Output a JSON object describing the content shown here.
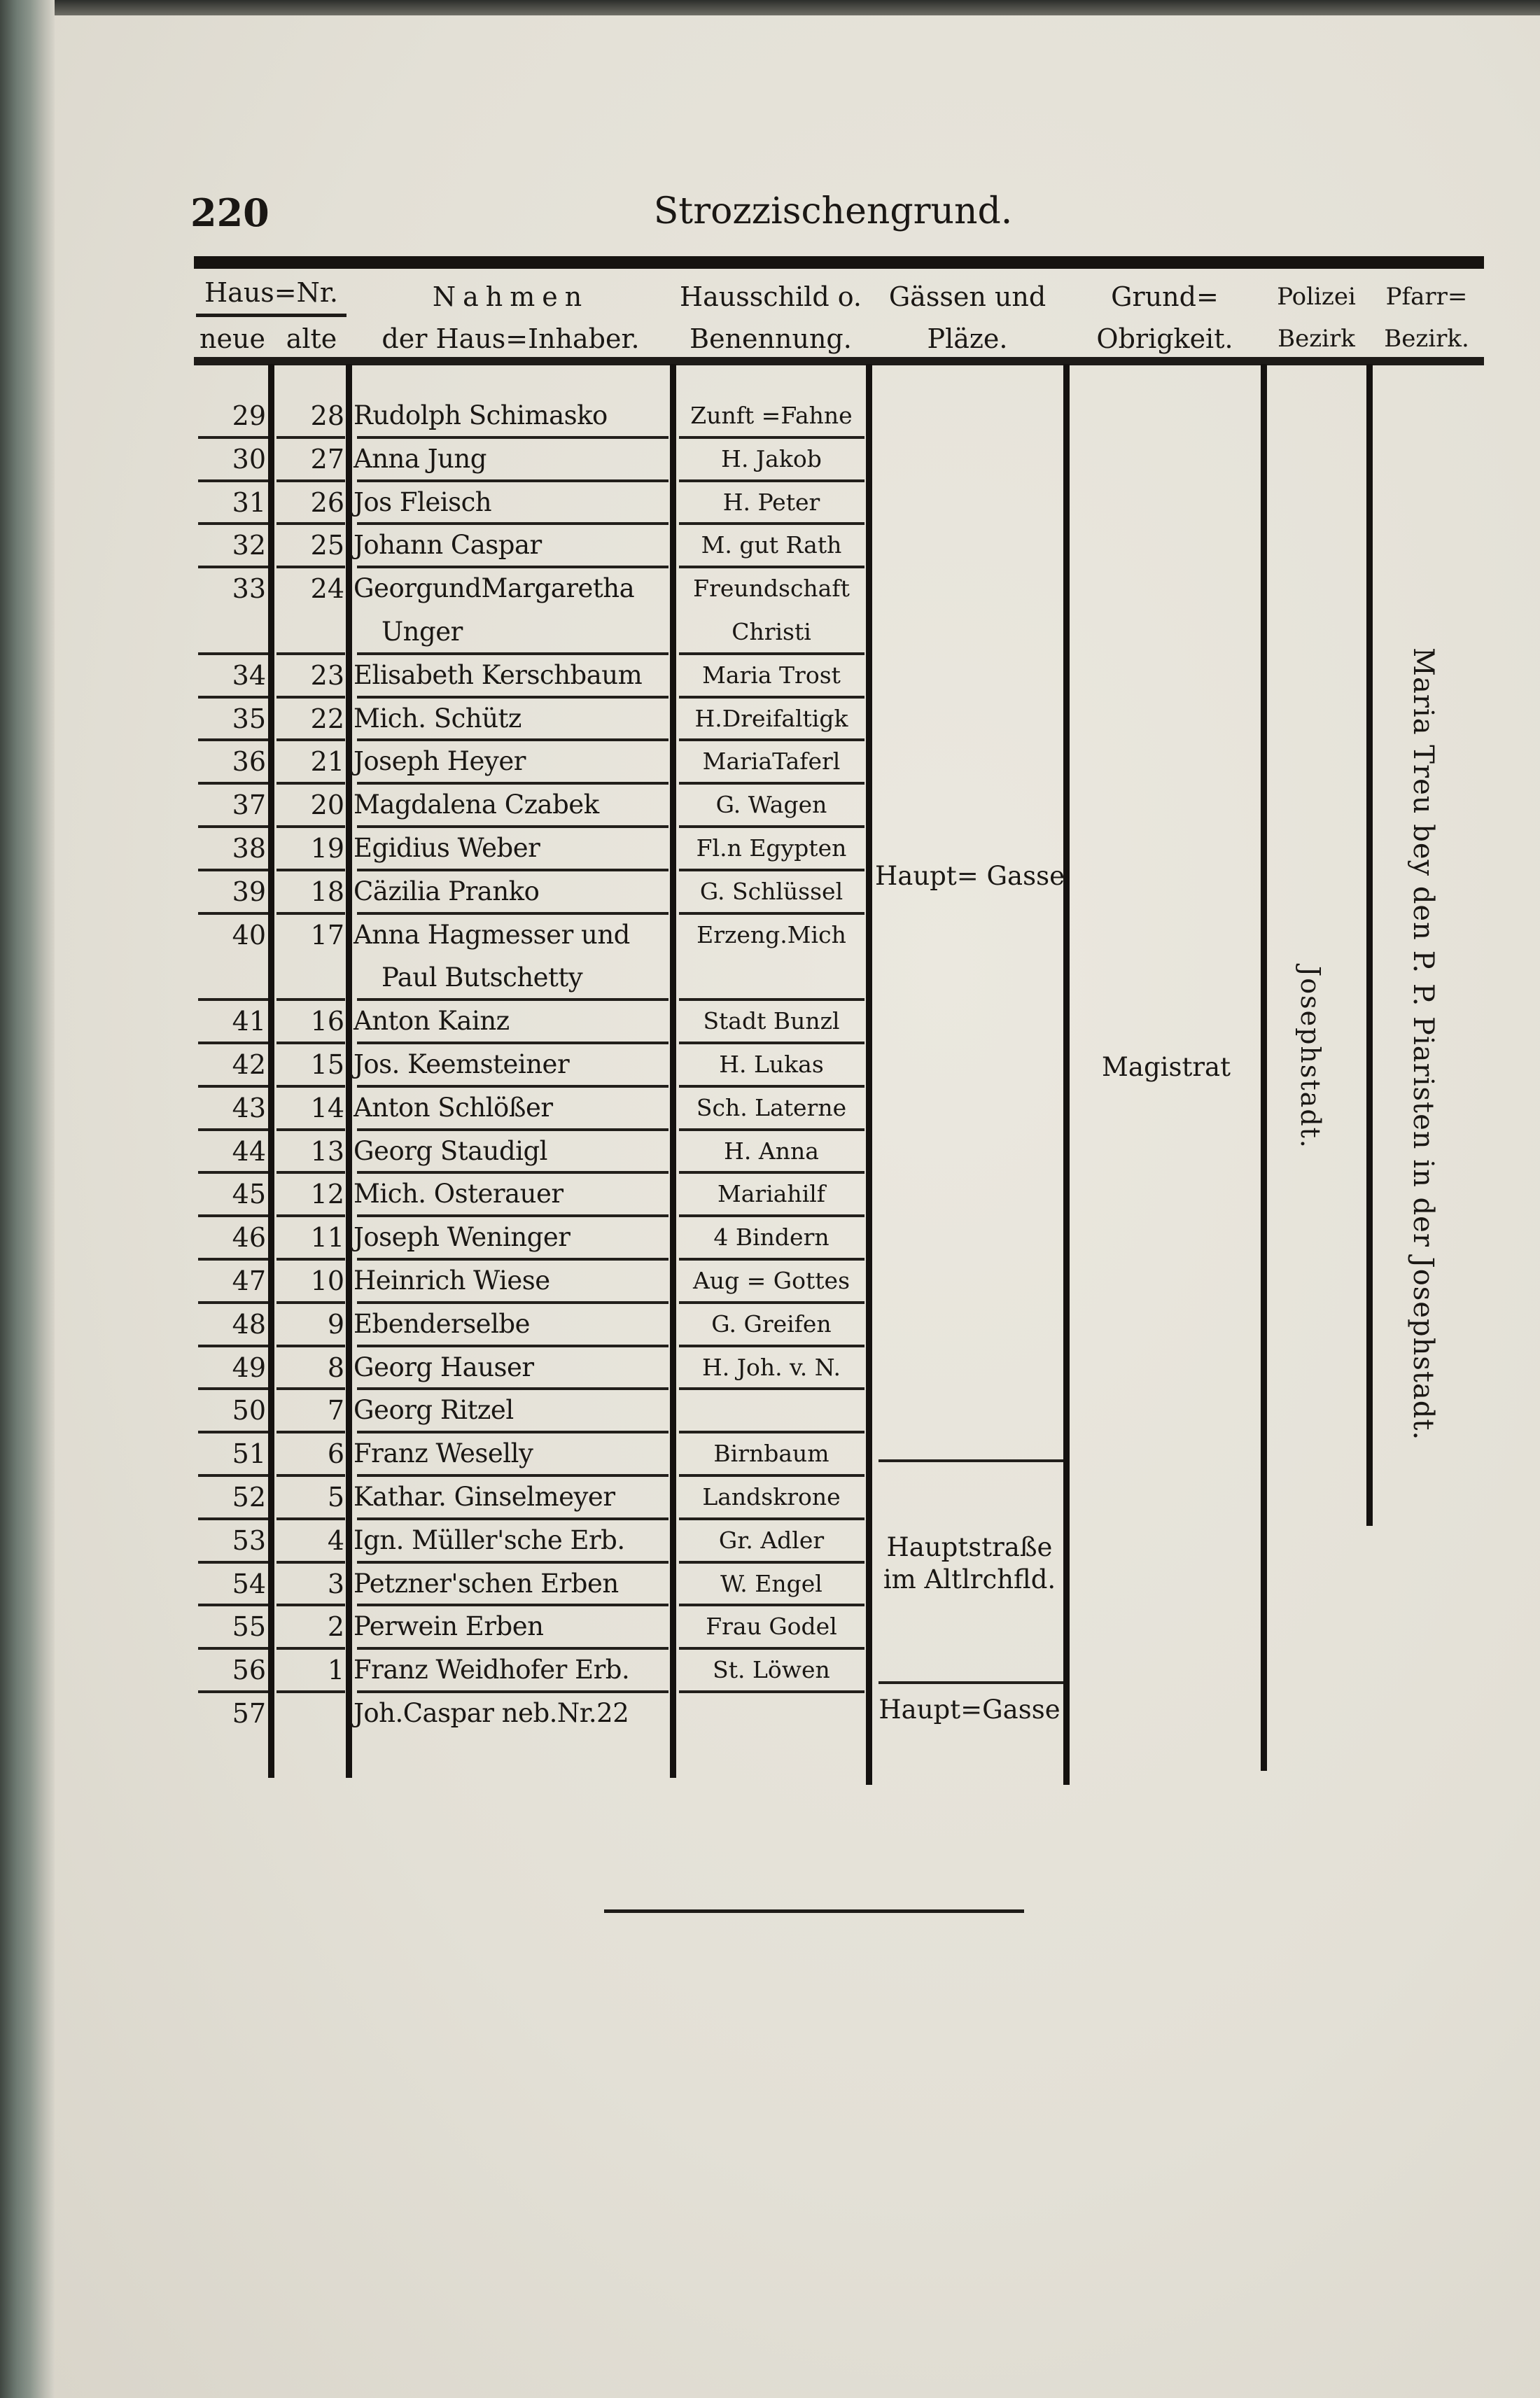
{
  "page": {
    "number": "220",
    "title": "Strozzischengrund."
  },
  "header": {
    "haus_nr": "Haus=Nr.",
    "neue": "neue",
    "alte": "alte",
    "nahmen_1": "Nahmen",
    "nahmen_2": "der Haus=Inhaber.",
    "hausschild_1": "Hausschild o.",
    "hausschild_2": "Benennung.",
    "gassen_1": "Gässen und",
    "gassen_2": "Pläze.",
    "grund_1": "Grund=",
    "grund_2": "Obrigkeit.",
    "polizei_1": "Polizei",
    "polizei_2": "Bezirk",
    "pfarr_1": "Pfarr=",
    "pfarr_2": "Bezirk."
  },
  "rows": [
    {
      "neue": "29",
      "alte": "28",
      "name": [
        "Rudolph Schimasko"
      ],
      "schild": [
        "Zunft =Fahne"
      ]
    },
    {
      "neue": "30",
      "alte": "27",
      "name": [
        "Anna Jung"
      ],
      "schild": [
        "H. Jakob"
      ]
    },
    {
      "neue": "31",
      "alte": "26",
      "name": [
        "Jos Fleisch"
      ],
      "schild": [
        "H. Peter"
      ]
    },
    {
      "neue": "32",
      "alte": "25",
      "name": [
        "Johann Caspar"
      ],
      "schild": [
        "M. gut Rath"
      ]
    },
    {
      "neue": "33",
      "alte": "24",
      "name": [
        "GeorgundMargaretha",
        "Unger"
      ],
      "schild": [
        "Freundschaft",
        "Christi"
      ]
    },
    {
      "neue": "34",
      "alte": "23",
      "name": [
        "Elisabeth Kerschbaum"
      ],
      "schild": [
        "Maria Trost"
      ]
    },
    {
      "neue": "35",
      "alte": "22",
      "name": [
        "Mich. Schütz"
      ],
      "schild": [
        "H.Dreifaltigk"
      ]
    },
    {
      "neue": "36",
      "alte": "21",
      "name": [
        "Joseph Heyer"
      ],
      "schild": [
        "MariaTaferl"
      ]
    },
    {
      "neue": "37",
      "alte": "20",
      "name": [
        "Magdalena Czabek"
      ],
      "schild": [
        "G. Wagen"
      ]
    },
    {
      "neue": "38",
      "alte": "19",
      "name": [
        "Egidius Weber"
      ],
      "schild": [
        "Fl.n Egypten"
      ]
    },
    {
      "neue": "39",
      "alte": "18",
      "name": [
        "Cäzilia Pranko"
      ],
      "schild": [
        "G. Schlüssel"
      ]
    },
    {
      "neue": "40",
      "alte": "17",
      "name": [
        "Anna Hagmesser und",
        "Paul Butschetty"
      ],
      "schild": [
        "Erzeng.Mich"
      ]
    },
    {
      "neue": "41",
      "alte": "16",
      "name": [
        "Anton Kainz"
      ],
      "schild": [
        "Stadt Bunzl"
      ]
    },
    {
      "neue": "42",
      "alte": "15",
      "name": [
        "Jos. Keemsteiner"
      ],
      "schild": [
        "H. Lukas"
      ]
    },
    {
      "neue": "43",
      "alte": "14",
      "name": [
        "Anton Schlößer"
      ],
      "schild": [
        "Sch. Laterne"
      ]
    },
    {
      "neue": "44",
      "alte": "13",
      "name": [
        "Georg Staudigl"
      ],
      "schild": [
        "H. Anna"
      ]
    },
    {
      "neue": "45",
      "alte": "12",
      "name": [
        "Mich. Osterauer"
      ],
      "schild": [
        "Mariahilf"
      ]
    },
    {
      "neue": "46",
      "alte": "11",
      "name": [
        "Joseph Weninger"
      ],
      "schild": [
        "4 Bindern"
      ]
    },
    {
      "neue": "47",
      "alte": "10",
      "name": [
        "Heinrich Wiese"
      ],
      "schild": [
        "Aug = Gottes"
      ]
    },
    {
      "neue": "48",
      "alte": "9",
      "name": [
        "Ebenderselbe"
      ],
      "schild": [
        "G. Greifen"
      ]
    },
    {
      "neue": "49",
      "alte": "8",
      "name": [
        "Georg Hauser"
      ],
      "schild": [
        "H. Joh. v. N."
      ]
    },
    {
      "neue": "50",
      "alte": "7",
      "name": [
        "Georg Ritzel"
      ],
      "schild": [
        ""
      ]
    },
    {
      "neue": "51",
      "alte": "6",
      "name": [
        "Franz Weselly"
      ],
      "schild": [
        "Birnbaum"
      ]
    },
    {
      "neue": "52",
      "alte": "5",
      "name": [
        "Kathar. Ginselmeyer"
      ],
      "schild": [
        "Landskrone"
      ]
    },
    {
      "neue": "53",
      "alte": "4",
      "name": [
        "Ign. Müller'sche Erb."
      ],
      "schild": [
        "Gr. Adler"
      ]
    },
    {
      "neue": "54",
      "alte": "3",
      "name": [
        "Petzner'schen Erben"
      ],
      "schild": [
        "W. Engel"
      ]
    },
    {
      "neue": "55",
      "alte": "2",
      "name": [
        "Perwein Erben"
      ],
      "schild": [
        "Frau Godel"
      ]
    },
    {
      "neue": "56",
      "alte": "1",
      "name": [
        "Franz Weidhofer Erb."
      ],
      "schild": [
        "St. Löwen"
      ]
    },
    {
      "neue": "57",
      "alte": "",
      "name": [
        "Joh.Caspar neb.Nr.22"
      ],
      "schild": [
        ""
      ]
    }
  ],
  "gassen": {
    "group1": "Haupt= Gasse",
    "group2_1": "Hauptstraße",
    "group2_2": "im Altlrchfld.",
    "group3": "Haupt=Gasse"
  },
  "grund": "Magistrat",
  "polizei": "Josephstadt.",
  "pfarr": "Maria Treu bey den P. P. Piaristen in der Josephstadt."
}
